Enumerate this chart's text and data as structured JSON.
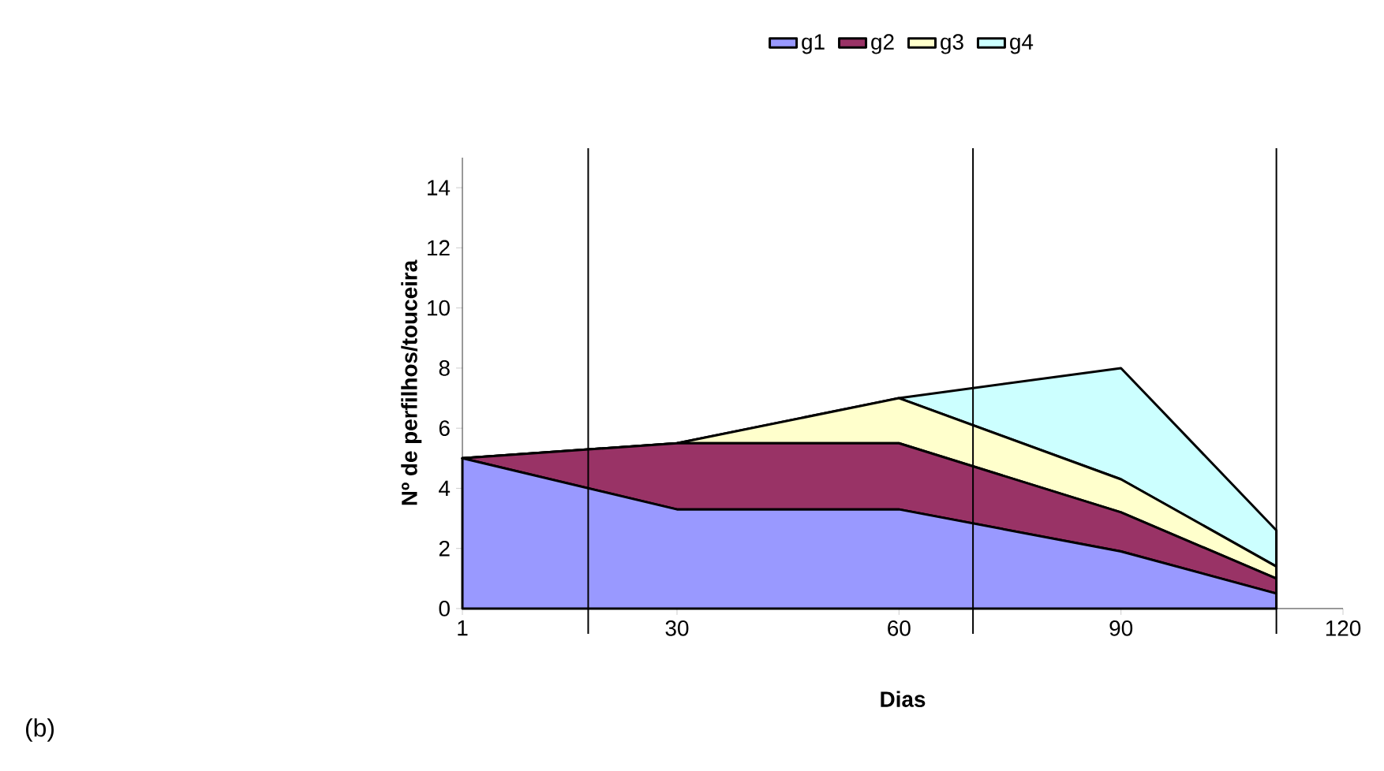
{
  "chart_data": {
    "type": "area",
    "stacked": true,
    "xlabel": "Dias",
    "ylabel": "Nº de perfilhos/touceira",
    "annotations": [
      "(b)"
    ],
    "x": [
      1,
      30,
      60,
      90,
      111
    ],
    "series": [
      {
        "name": "g1",
        "color": "#9999ff",
        "values": [
          5,
          3.3,
          3.3,
          1.9,
          0.5
        ]
      },
      {
        "name": "g2",
        "color": "#993366",
        "values": [
          0,
          2.2,
          2.2,
          1.3,
          0.5
        ]
      },
      {
        "name": "g3",
        "color": "#ffffcc",
        "values": [
          0,
          0,
          1.5,
          1.1,
          0.4
        ]
      },
      {
        "name": "g4",
        "color": "#ccffff",
        "values": [
          0,
          0,
          0,
          3.7,
          1.2
        ]
      }
    ],
    "xlim": [
      1,
      120
    ],
    "xticks": [
      1,
      30,
      60,
      90,
      120
    ],
    "ylim": [
      0,
      15
    ],
    "yticks": [
      0,
      2,
      4,
      6,
      8,
      10,
      12,
      14
    ],
    "ref_lines": [
      {
        "axis": "x",
        "value": 18
      },
      {
        "axis": "x",
        "value": 70
      },
      {
        "axis": "x",
        "value": 111
      }
    ],
    "legend": "top",
    "grid": false
  }
}
